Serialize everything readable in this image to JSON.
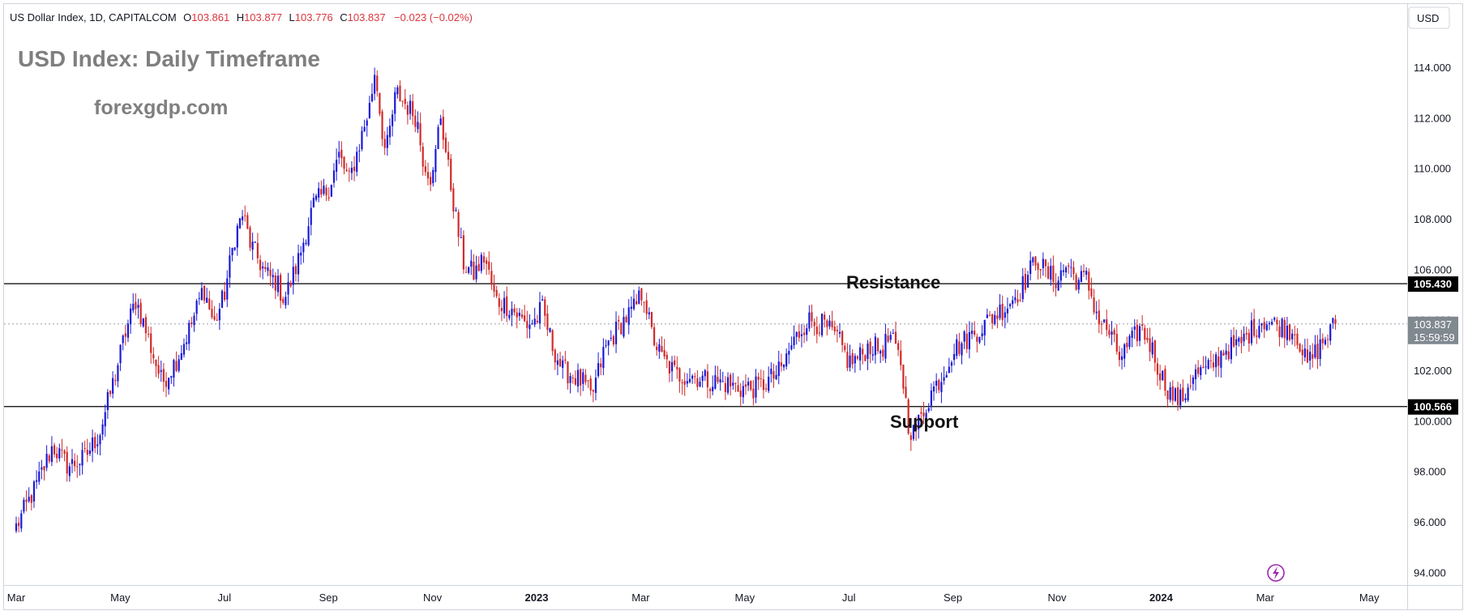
{
  "header": {
    "symbol": "US Dollar Index, 1D, CAPITALCOM",
    "open_label": "O",
    "open_value": "103.861",
    "high_label": "H",
    "high_value": "103.877",
    "low_label": "L",
    "low_value": "103.776",
    "close_label": "C",
    "close_value": "103.837",
    "change": "−0.023 (−0.02%)"
  },
  "watermark": {
    "title": "USD Index: Daily Timeframe",
    "site": "forexgdp.com"
  },
  "currency_button": "USD",
  "colors": {
    "up": "#1a1ad6",
    "down": "#d12a2a",
    "level_line": "#000000",
    "current_tag": "#808890"
  },
  "chart_data": {
    "type": "candlestick",
    "title": "USD Index: Daily Timeframe",
    "timeframe": "1D",
    "ylim": [
      93.5,
      116.5
    ],
    "y_ticks": [
      "94.000",
      "96.000",
      "98.000",
      "100.000",
      "102.000",
      "104.000",
      "106.000",
      "108.000",
      "110.000",
      "112.000",
      "114.000"
    ],
    "x_ticks": [
      {
        "label": "Mar",
        "bold": false,
        "month_index": 0
      },
      {
        "label": "May",
        "bold": false,
        "month_index": 2
      },
      {
        "label": "Jul",
        "bold": false,
        "month_index": 4
      },
      {
        "label": "Sep",
        "bold": false,
        "month_index": 6
      },
      {
        "label": "Nov",
        "bold": false,
        "month_index": 8
      },
      {
        "label": "2023",
        "bold": true,
        "month_index": 10
      },
      {
        "label": "Mar",
        "bold": false,
        "month_index": 12
      },
      {
        "label": "May",
        "bold": false,
        "month_index": 14
      },
      {
        "label": "Jul",
        "bold": false,
        "month_index": 16
      },
      {
        "label": "Sep",
        "bold": false,
        "month_index": 18
      },
      {
        "label": "Nov",
        "bold": false,
        "month_index": 20
      },
      {
        "label": "2024",
        "bold": true,
        "month_index": 22
      },
      {
        "label": "Mar",
        "bold": false,
        "month_index": 24
      },
      {
        "label": "May",
        "bold": false,
        "month_index": 26
      }
    ],
    "price_path": [
      [
        0,
        95.8
      ],
      [
        0.4,
        97.5
      ],
      [
        0.7,
        99.0
      ],
      [
        1.0,
        98.2
      ],
      [
        1.3,
        98.5
      ],
      [
        1.6,
        99.5
      ],
      [
        1.9,
        101.8
      ],
      [
        2.1,
        103.5
      ],
      [
        2.3,
        104.8
      ],
      [
        2.5,
        103.5
      ],
      [
        2.8,
        101.5
      ],
      [
        3.1,
        102.5
      ],
      [
        3.4,
        104.0
      ],
      [
        3.6,
        105.3
      ],
      [
        3.8,
        103.8
      ],
      [
        4.0,
        105.0
      ],
      [
        4.2,
        107.3
      ],
      [
        4.35,
        108.2
      ],
      [
        4.5,
        107.0
      ],
      [
        4.8,
        105.8
      ],
      [
        5.0,
        105.5
      ],
      [
        5.15,
        104.8
      ],
      [
        5.4,
        106.2
      ],
      [
        5.7,
        108.5
      ],
      [
        6.0,
        109.2
      ],
      [
        6.2,
        110.5
      ],
      [
        6.4,
        109.5
      ],
      [
        6.6,
        111.0
      ],
      [
        6.8,
        112.5
      ],
      [
        6.9,
        114.0
      ],
      [
        7.0,
        112.0
      ],
      [
        7.1,
        110.5
      ],
      [
        7.3,
        113.0
      ],
      [
        7.5,
        112.5
      ],
      [
        7.7,
        112.0
      ],
      [
        7.8,
        110.5
      ],
      [
        8.0,
        109.5
      ],
      [
        8.15,
        112.2
      ],
      [
        8.3,
        110.0
      ],
      [
        8.45,
        108.0
      ],
      [
        8.6,
        106.2
      ],
      [
        8.8,
        105.8
      ],
      [
        9.0,
        106.5
      ],
      [
        9.2,
        104.8
      ],
      [
        9.5,
        104.5
      ],
      [
        9.8,
        103.8
      ],
      [
        10.0,
        104.0
      ],
      [
        10.1,
        104.5
      ],
      [
        10.3,
        103.0
      ],
      [
        10.5,
        102.0
      ],
      [
        10.7,
        101.8
      ],
      [
        10.9,
        101.5
      ],
      [
        11.05,
        100.9
      ],
      [
        11.3,
        102.8
      ],
      [
        11.6,
        103.8
      ],
      [
        11.9,
        104.5
      ],
      [
        12.05,
        105.2
      ],
      [
        12.2,
        103.5
      ],
      [
        12.4,
        102.5
      ],
      [
        12.7,
        101.8
      ],
      [
        13.0,
        101.8
      ],
      [
        13.3,
        101.6
      ],
      [
        13.6,
        101.5
      ],
      [
        13.9,
        101.3
      ],
      [
        14.2,
        101.3
      ],
      [
        14.4,
        101.5
      ],
      [
        14.7,
        102.0
      ],
      [
        14.9,
        103.0
      ],
      [
        15.2,
        104.0
      ],
      [
        15.5,
        103.8
      ],
      [
        15.8,
        103.2
      ],
      [
        16.0,
        102.3
      ],
      [
        16.2,
        102.5
      ],
      [
        16.4,
        103.0
      ],
      [
        16.6,
        102.8
      ],
      [
        16.8,
        103.3
      ],
      [
        17.0,
        102.3
      ],
      [
        17.15,
        99.8
      ],
      [
        17.25,
        99.5
      ],
      [
        17.4,
        100.2
      ],
      [
        17.6,
        101.2
      ],
      [
        17.8,
        101.8
      ],
      [
        18.0,
        102.8
      ],
      [
        18.3,
        103.3
      ],
      [
        18.6,
        103.8
      ],
      [
        18.8,
        104.2
      ],
      [
        19.0,
        104.5
      ],
      [
        19.3,
        105.2
      ],
      [
        19.5,
        106.0
      ],
      [
        19.6,
        106.5
      ],
      [
        19.8,
        105.8
      ],
      [
        20.0,
        105.6
      ],
      [
        20.2,
        106.2
      ],
      [
        20.4,
        105.5
      ],
      [
        20.55,
        105.7
      ],
      [
        20.8,
        104.0
      ],
      [
        21.0,
        103.5
      ],
      [
        21.2,
        102.5
      ],
      [
        21.4,
        103.0
      ],
      [
        21.6,
        103.7
      ],
      [
        21.8,
        103.0
      ],
      [
        22.0,
        101.8
      ],
      [
        22.2,
        101.0
      ],
      [
        22.4,
        100.8
      ],
      [
        22.6,
        101.8
      ],
      [
        22.9,
        102.0
      ],
      [
        23.2,
        102.8
      ],
      [
        23.5,
        103.0
      ],
      [
        23.7,
        103.5
      ],
      [
        23.95,
        104.0
      ],
      [
        24.2,
        103.8
      ],
      [
        24.4,
        103.7
      ],
      [
        24.6,
        103.5
      ],
      [
        24.8,
        102.2
      ],
      [
        25.0,
        102.8
      ],
      [
        25.2,
        103.4
      ],
      [
        25.35,
        103.84
      ]
    ],
    "levels": [
      {
        "name": "Resistance",
        "value": 105.43,
        "tag": "105.430"
      },
      {
        "name": "Support",
        "value": 100.566,
        "tag": "100.566"
      }
    ],
    "current": {
      "value": 103.837,
      "price_tag": "103.837",
      "countdown": "15:59:59"
    },
    "annotations": [
      "Resistance",
      "Support"
    ]
  }
}
